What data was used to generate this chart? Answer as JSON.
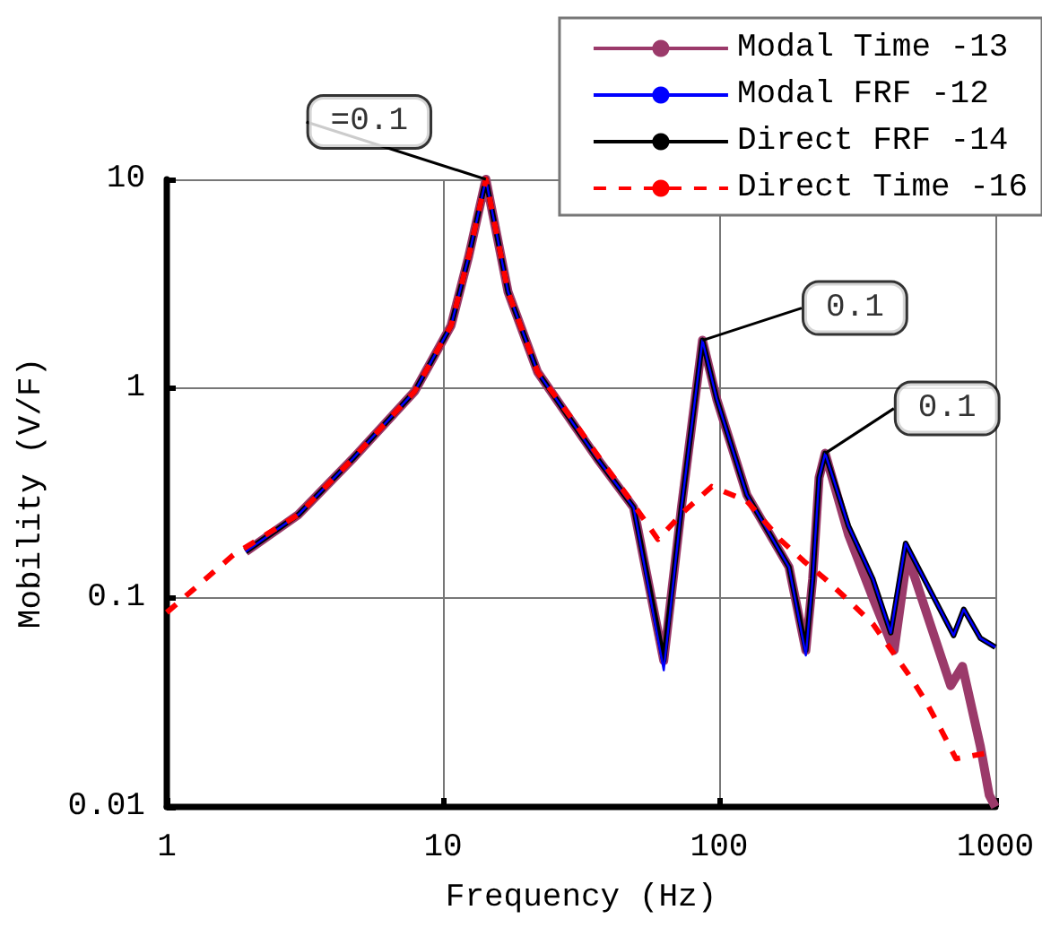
{
  "chart_data": {
    "type": "line",
    "xlabel": "Frequency (Hz)",
    "ylabel": "Mobility (V/F)",
    "log": "xy",
    "grid": true,
    "legend": "top right",
    "marker": "none",
    "xlim": [
      1,
      1000
    ],
    "xticks": [
      1,
      10,
      100,
      1000
    ],
    "ylim": [
      0.01,
      10
    ],
    "yticks": [
      0.01,
      0.1,
      1,
      10
    ],
    "annotations": [
      {
        "text": "=0.1",
        "x": 14.3,
        "y": 10
      },
      {
        "text": "0.1",
        "x": 87,
        "y": 1.7
      },
      {
        "text": "0.1",
        "x": 242,
        "y": 0.49
      }
    ],
    "series": [
      {
        "name": "Modal Time -13",
        "color": "#9b3a6a",
        "line_style": "solid",
        "x": [
          1.93,
          3.0,
          4.7,
          7.9,
          10.7,
          12.4,
          14.3,
          17.2,
          22,
          36.3,
          49,
          63,
          73,
          87,
          98,
          126,
          179,
          206,
          218,
          230,
          242,
          294,
          360,
          430,
          480,
          689,
          760,
          883,
          950,
          1000
        ],
        "values": [
          0.166,
          0.25,
          0.46,
          0.97,
          2.0,
          4.3,
          10,
          2.9,
          1.2,
          0.46,
          0.27,
          0.05,
          0.27,
          1.7,
          0.89,
          0.31,
          0.14,
          0.056,
          0.123,
          0.375,
          0.49,
          0.2,
          0.1,
          0.056,
          0.16,
          0.038,
          0.047,
          0.0194,
          0.0114,
          0.01
        ]
      },
      {
        "name": "Modal FRF -12",
        "color": "#0000ff",
        "line_style": "solid",
        "x": [
          1.93,
          3.0,
          4.7,
          7.9,
          10.7,
          12.4,
          14.3,
          17.2,
          22,
          36.3,
          49,
          63,
          73,
          87,
          98,
          126,
          179,
          206,
          218,
          230,
          242,
          294,
          360,
          418,
          473,
          706,
          768,
          883,
          1000
        ],
        "values": [
          0.166,
          0.25,
          0.46,
          0.97,
          2.0,
          4.3,
          10,
          2.9,
          1.2,
          0.46,
          0.27,
          0.045,
          0.27,
          1.7,
          0.89,
          0.31,
          0.14,
          0.053,
          0.123,
          0.375,
          0.49,
          0.22,
          0.123,
          0.068,
          0.182,
          0.066,
          0.088,
          0.064,
          0.058
        ]
      },
      {
        "name": "Direct FRF -14",
        "color": "#000000",
        "line_style": "solid",
        "x": [
          1.93,
          3.0,
          4.7,
          7.9,
          10.7,
          12.4,
          14.3,
          17.2,
          22,
          36.3,
          49,
          63,
          73,
          87,
          98,
          126,
          179,
          206,
          218,
          230,
          242,
          294,
          360,
          418,
          473,
          706,
          768,
          883,
          1000
        ],
        "values": [
          0.166,
          0.25,
          0.46,
          0.97,
          2.0,
          4.3,
          10,
          2.9,
          1.2,
          0.46,
          0.27,
          0.05,
          0.27,
          1.7,
          0.89,
          0.31,
          0.14,
          0.056,
          0.123,
          0.375,
          0.49,
          0.22,
          0.123,
          0.068,
          0.182,
          0.066,
          0.088,
          0.064,
          0.058
        ]
      },
      {
        "name": "Direct Time -16",
        "color": "#ff0000",
        "line_style": "dashed",
        "x": [
          1,
          1.74,
          3.0,
          4.7,
          7.9,
          10.7,
          12.4,
          14.3,
          17.2,
          22,
          29,
          38,
          48,
          60,
          75,
          94,
          126,
          166,
          202,
          242,
          294,
          360,
          485,
          560,
          640,
          720,
          910
        ],
        "values": [
          0.085,
          0.16,
          0.25,
          0.46,
          0.97,
          2.0,
          4.3,
          10,
          2.9,
          1.2,
          0.73,
          0.44,
          0.29,
          0.19,
          0.26,
          0.34,
          0.29,
          0.19,
          0.15,
          0.123,
          0.097,
          0.075,
          0.043,
          0.032,
          0.023,
          0.017,
          0.018
        ]
      }
    ]
  }
}
